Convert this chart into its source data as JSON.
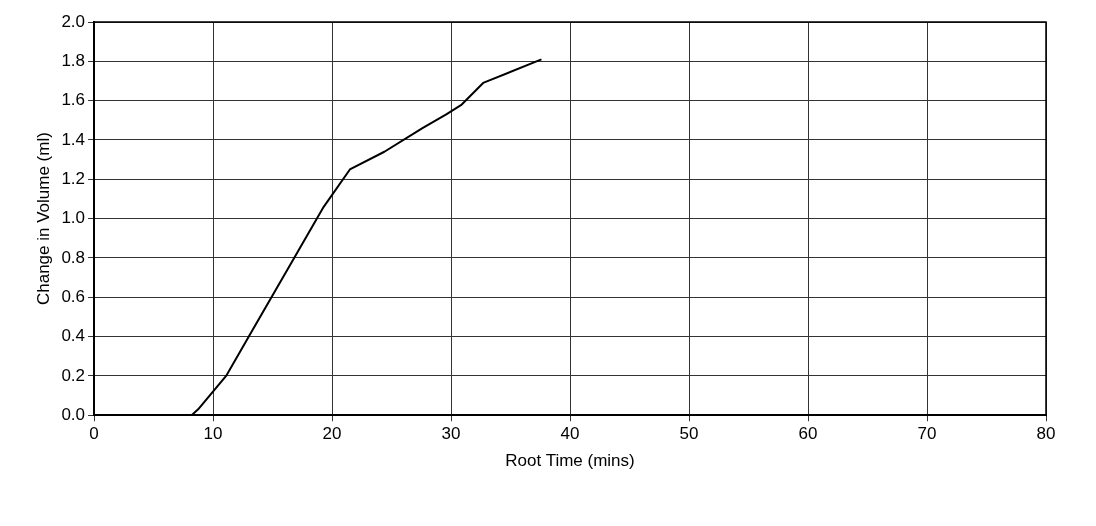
{
  "chart_data": {
    "type": "line",
    "xlabel": "Root Time (mins)",
    "ylabel": "Change in Volume (ml)",
    "x": [
      0,
      8.2,
      8.75,
      11.1,
      19.3,
      21.5,
      24.4,
      27.6,
      29.6,
      30.9,
      32.7,
      37.6
    ],
    "series": [
      {
        "color": "#000000",
        "values": [
          0,
          0,
          0.03,
          0.2,
          1.06,
          1.25,
          1.34,
          1.46,
          1.53,
          1.58,
          1.69,
          1.81
        ]
      }
    ],
    "xlim": [
      0,
      80
    ],
    "xticks": [
      0,
      10,
      20,
      30,
      40,
      50,
      60,
      70,
      80
    ],
    "ylim": [
      0,
      2.0
    ],
    "yticks": [
      {
        "value": 0,
        "label": "0.0"
      },
      {
        "value": 0.2,
        "label": "0.2"
      },
      {
        "value": 0.4,
        "label": "0.4"
      },
      {
        "value": 0.6,
        "label": "0.6"
      },
      {
        "value": 0.8,
        "label": "0.8"
      },
      {
        "value": 1.0,
        "label": "1.0"
      },
      {
        "value": 1.2,
        "label": "1.2"
      },
      {
        "value": 1.4,
        "label": "1.4"
      },
      {
        "value": 1.6,
        "label": "1.6"
      },
      {
        "value": 1.8,
        "label": "1.8"
      },
      {
        "value": 2.0,
        "label": "2.0"
      }
    ],
    "grid": true,
    "legend": false,
    "marker": "none",
    "line_style": "solid"
  }
}
